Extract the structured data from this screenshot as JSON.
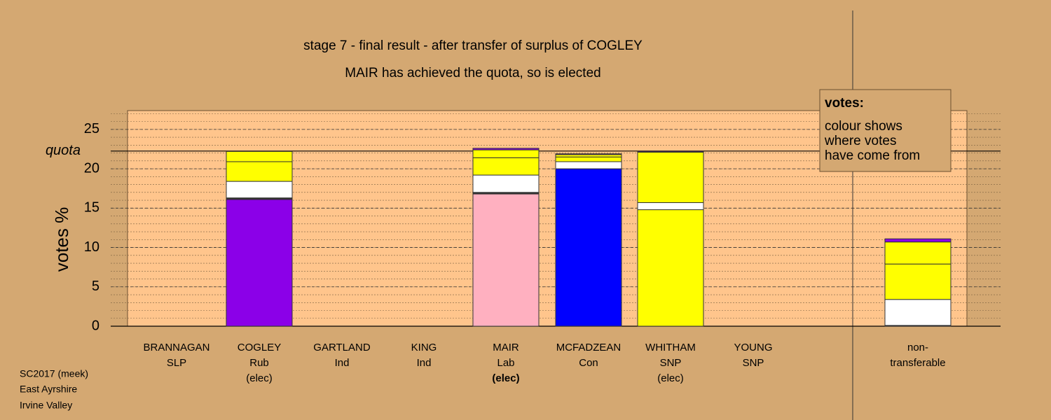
{
  "chart_data": {
    "type": "stacked_bar",
    "title": "stage 7 - final result - after transfer of surplus of COGLEY",
    "subtitle": "MAIR has achieved the quota, so is elected",
    "y_label": "votes %",
    "categories": [
      [
        "BRANNAGAN",
        "SLP"
      ],
      [
        "COGLEY",
        "Rub",
        "(elec)"
      ],
      [
        "GARTLAND",
        "Ind"
      ],
      [
        "KING",
        "Ind"
      ],
      [
        "MAIR",
        "Lab",
        "(elec)"
      ],
      [
        "MCFADZEAN",
        "Con"
      ],
      [
        "WHITHAM",
        "SNP",
        "(elec)"
      ],
      [
        "YOUNG",
        "SNP"
      ],
      [
        "non-",
        "transferable"
      ]
    ],
    "bold_category": 4,
    "series": [
      {
        "colors": [
          "#808080",
          "#8b00e8",
          "#808080",
          "#808080",
          "#ffb0c0",
          "#0000ff",
          "#ffff00",
          "#ffff00",
          "#ffffff"
        ],
        "values": [
          0,
          16.1,
          0,
          0,
          16.8,
          20.0,
          14.8,
          0,
          0
        ]
      },
      {
        "color": "#333333",
        "values": [
          0,
          0.2,
          0,
          0,
          0.2,
          0,
          0,
          0,
          0.1
        ]
      },
      {
        "color": "#ffffff",
        "values": [
          0,
          2.1,
          0,
          0,
          2.2,
          0.9,
          0.9,
          0,
          3.3
        ]
      },
      {
        "color": "#ffff00",
        "values": [
          0,
          2.5,
          0,
          0,
          2.2,
          0.6,
          6.4,
          0,
          4.5
        ]
      },
      {
        "color": "#ffff00",
        "values": [
          0,
          1.3,
          0,
          0,
          1.0,
          0.3,
          0,
          0,
          2.8
        ]
      },
      {
        "color": "#8b00e8",
        "values": [
          0,
          0,
          0,
          0,
          0.2,
          0.1,
          0.1,
          0,
          0.4
        ]
      }
    ],
    "ylim": [
      0,
      27.3
    ],
    "yticks": [
      0,
      5,
      10,
      15,
      20,
      25
    ],
    "minor_step": 1,
    "quota": 22.25,
    "quota_label": "quota",
    "legend": {
      "title": "votes:",
      "lines": [
        "colour shows",
        "where votes",
        "have come from"
      ]
    },
    "footer": [
      "SC2017 (meek)",
      "East Ayrshire",
      "Irvine Valley"
    ]
  }
}
